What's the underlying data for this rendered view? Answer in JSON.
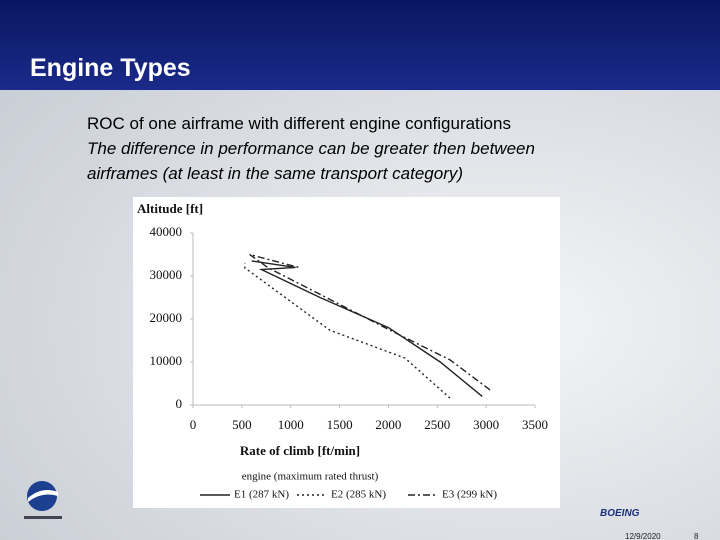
{
  "slide": {
    "title": "Engine Types",
    "lines": [
      "ROC of one airframe with different engine configurations",
      "The difference in performance can be greater then between",
      "airframes (at least in the same transport category)"
    ],
    "logo_text": "BOEING",
    "date": "12/9/2020",
    "page": "8"
  },
  "chart_data": {
    "type": "line",
    "y_label": "Altitude [ft]",
    "x_label": "Rate of climb [ft/min]",
    "legend_title": "engine (maximum rated thrust)",
    "xlim": [
      0,
      3500
    ],
    "xticks": [
      0,
      500,
      1000,
      1500,
      2000,
      2500,
      3000,
      3500
    ],
    "ylim": [
      0,
      40000
    ],
    "yticks": [
      0,
      10000,
      20000,
      30000,
      40000
    ],
    "series": [
      {
        "name": "E1 (287 kN)",
        "color": "#222222",
        "dash": "solid",
        "x": [
          2960,
          2530,
          2000,
          1300,
          700,
          1050,
          600
        ],
        "values": [
          2000,
          10000,
          18000,
          25000,
          31500,
          32000,
          33500
        ]
      },
      {
        "name": "E2 (285 kN)",
        "color": "#222222",
        "dash": "dotted",
        "x": [
          2630,
          2170,
          1400,
          530,
          530
        ],
        "values": [
          1600,
          10900,
          17400,
          31900,
          33000
        ]
      },
      {
        "name": "E3 (299 kN)",
        "color": "#222222",
        "dash": "dashdot",
        "x": [
          3040,
          2630,
          2016,
          770,
          580,
          1080
        ],
        "values": [
          3500,
          10500,
          17400,
          31900,
          35000,
          32000
        ]
      }
    ]
  }
}
